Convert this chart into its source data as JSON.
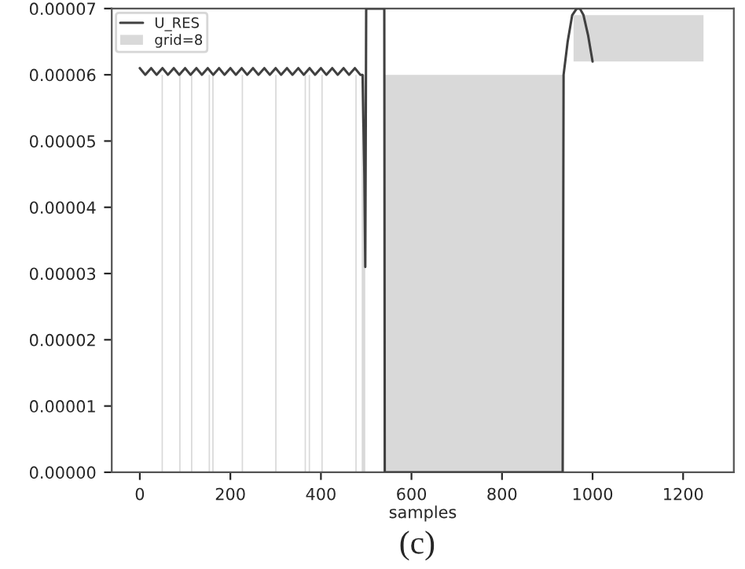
{
  "chart_data": {
    "type": "line",
    "xlabel": "samples",
    "annotations": [
      "(c)"
    ],
    "xlim": [
      -62,
      1312
    ],
    "xticks": [
      0,
      200,
      400,
      600,
      800,
      1000,
      1200
    ],
    "ylim": [
      0,
      7e-05
    ],
    "yticks": [
      {
        "value": 0,
        "label": "0.00000"
      },
      {
        "value": 1e-05,
        "label": "0.00001"
      },
      {
        "value": 2e-05,
        "label": "0.00002"
      },
      {
        "value": 3e-05,
        "label": "0.00003"
      },
      {
        "value": 4e-05,
        "label": "0.00004"
      },
      {
        "value": 5e-05,
        "label": "0.00005"
      },
      {
        "value": 6e-05,
        "label": "0.00006"
      },
      {
        "value": 7e-05,
        "label": "0.00007"
      }
    ],
    "legend": "top left",
    "grid": false,
    "series": [
      {
        "name": "grid=8",
        "type": "histogram",
        "color": "#d9d9d9",
        "bins": [
          48,
          51,
          87,
          90,
          113,
          116,
          152,
          155,
          160,
          163,
          225,
          228,
          299,
          302,
          364,
          367,
          373,
          376,
          401,
          404,
          476,
          479,
          490,
          498,
          540,
          934
        ],
        "values": [
          6e-05,
          null,
          6e-05,
          null,
          6e-05,
          null,
          6e-05,
          null,
          6e-05,
          null,
          6e-05,
          null,
          6e-05,
          null,
          6e-05,
          null,
          6e-05,
          null,
          6e-05,
          null,
          6e-05,
          null,
          6e-05,
          null,
          6e-05
        ]
      },
      {
        "type": "histogram",
        "color": "#d9d9d9",
        "bins": [
          958,
          1245
        ],
        "values": [
          7e-06
        ],
        "base": [
          6.2e-05
        ]
      },
      {
        "name": "U_RES",
        "color": "#404040",
        "x": [
          0,
          12,
          25,
          37,
          50,
          62,
          75,
          87,
          100,
          112,
          125,
          137,
          150,
          162,
          175,
          187,
          200,
          212,
          225,
          237,
          250,
          262,
          275,
          287,
          300,
          312,
          325,
          337,
          350,
          362,
          375,
          387,
          400,
          412,
          425,
          437,
          450,
          462,
          475,
          487,
          492,
          496,
          498,
          500,
          540,
          541,
          934,
          936,
          945,
          955,
          965,
          972,
          980,
          990,
          1000
        ],
        "values": [
          6.1e-05,
          6e-05,
          6.1e-05,
          6e-05,
          6.1e-05,
          6e-05,
          6.1e-05,
          6e-05,
          6.1e-05,
          6e-05,
          6.1e-05,
          6e-05,
          6.1e-05,
          6e-05,
          6.1e-05,
          6e-05,
          6.1e-05,
          6e-05,
          6.1e-05,
          6e-05,
          6.1e-05,
          6e-05,
          6.1e-05,
          6e-05,
          6.1e-05,
          6e-05,
          6.1e-05,
          6e-05,
          6.1e-05,
          6e-05,
          6.1e-05,
          6e-05,
          6.1e-05,
          6e-05,
          6.1e-05,
          6e-05,
          6.1e-05,
          6e-05,
          6.1e-05,
          6e-05,
          6e-05,
          4.5e-05,
          3.1e-05,
          7e-05,
          7e-05,
          0,
          0,
          6e-05,
          6.5e-05,
          6.9e-05,
          7e-05,
          7e-05,
          6.9e-05,
          6.6e-05,
          6.2e-05
        ]
      }
    ]
  }
}
